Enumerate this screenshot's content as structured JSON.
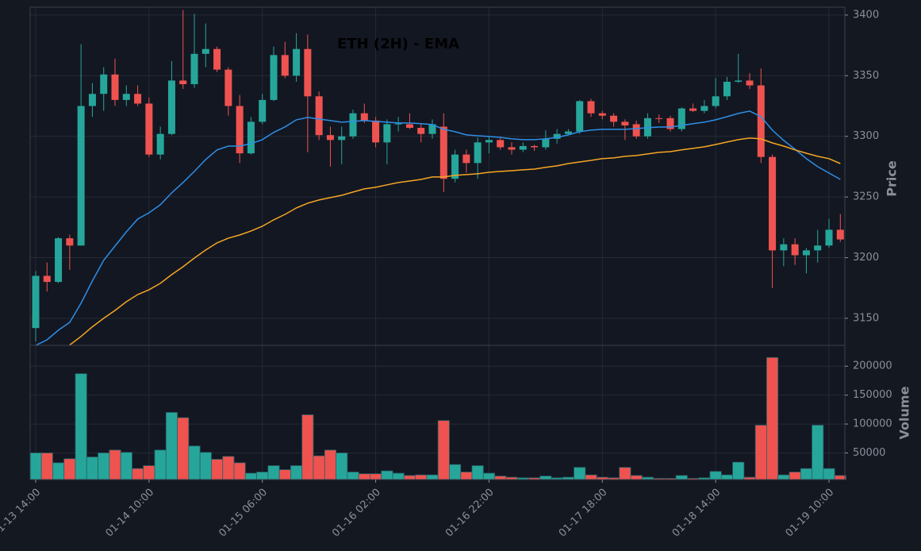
{
  "chart_data": {
    "type": "candlestick",
    "title": "ETH (2H) - EMA",
    "ylabel": "Price",
    "volume_label": "Volume",
    "categories": [
      "01-13 14:00",
      null,
      null,
      null,
      null,
      null,
      null,
      null,
      null,
      null,
      "01-14 10:00",
      null,
      null,
      null,
      null,
      null,
      null,
      null,
      null,
      null,
      "01-15 06:00",
      null,
      null,
      null,
      null,
      null,
      null,
      null,
      null,
      null,
      "01-16 02:00",
      null,
      null,
      null,
      null,
      null,
      null,
      null,
      null,
      null,
      "01-16 22:00",
      null,
      null,
      null,
      null,
      null,
      null,
      null,
      null,
      null,
      "01-17 18:00",
      null,
      null,
      null,
      null,
      null,
      null,
      null,
      null,
      null,
      "01-18 14:00",
      null,
      null,
      null,
      null,
      null,
      null,
      null,
      null,
      null,
      "01-19 10:00",
      null
    ],
    "open": [
      3142,
      3185,
      3180,
      3216,
      3210,
      3325,
      3335,
      3351,
      3330,
      3335,
      3327,
      3285,
      3302,
      3346,
      3343,
      3368,
      3372,
      3355,
      3325,
      3286,
      3312,
      3330,
      3367,
      3350,
      3372,
      3333,
      3301,
      3297,
      3300,
      3319,
      3313,
      3295,
      3310,
      3310,
      3307,
      3302,
      3308,
      3265,
      3285,
      3278,
      3295,
      3297,
      3291,
      3289,
      3292,
      3291,
      3298,
      3302,
      3304,
      3329,
      3319,
      3317,
      3312,
      3310,
      3300,
      3315,
      3315,
      3306,
      3323,
      3321,
      3325,
      3333,
      3345,
      3346,
      3342,
      3283,
      3206,
      3211,
      3202,
      3206,
      3210,
      3223
    ],
    "high": [
      3189,
      3196,
      3217,
      3219,
      3376,
      3344,
      3357,
      3364,
      3342,
      3342,
      3332,
      3308,
      3362,
      3404,
      3401,
      3393,
      3374,
      3357,
      3334,
      3316,
      3335,
      3374,
      3378,
      3385,
      3384,
      3337,
      3308,
      3308,
      3322,
      3327,
      3316,
      3314,
      3316,
      3319,
      3311,
      3314,
      3319,
      3289,
      3289,
      3299,
      3300,
      3299,
      3295,
      3295,
      3293,
      3305,
      3306,
      3306,
      3330,
      3331,
      3321,
      3319,
      3314,
      3313,
      3319,
      3318,
      3317,
      3324,
      3327,
      3330,
      3348,
      3349,
      3368,
      3352,
      3356,
      3285,
      3216,
      3216,
      3208,
      3223,
      3232,
      3236
    ],
    "low": [
      3131,
      3172,
      3179,
      3190,
      3210,
      3316,
      3321,
      3325,
      3325,
      3325,
      3283,
      3281,
      3301,
      3339,
      3340,
      3357,
      3353,
      3317,
      3278,
      3285,
      3310,
      3329,
      3348,
      3345,
      3287,
      3297,
      3275,
      3277,
      3298,
      3311,
      3291,
      3277,
      3304,
      3306,
      3295,
      3298,
      3254,
      3262,
      3270,
      3265,
      3286,
      3289,
      3285,
      3287,
      3288,
      3289,
      3294,
      3301,
      3302,
      3316,
      3314,
      3308,
      3297,
      3298,
      3298,
      3311,
      3304,
      3304,
      3320,
      3319,
      3323,
      3330,
      3344,
      3339,
      3278,
      3175,
      3193,
      3194,
      3187,
      3196,
      3208,
      3213
    ],
    "close": [
      3185,
      3180,
      3216,
      3210,
      3325,
      3335,
      3351,
      3330,
      3335,
      3327,
      3285,
      3302,
      3346,
      3343,
      3368,
      3372,
      3355,
      3325,
      3286,
      3312,
      3330,
      3367,
      3350,
      3372,
      3333,
      3301,
      3297,
      3300,
      3319,
      3313,
      3295,
      3310,
      3310.5,
      3307,
      3302,
      3310,
      3265,
      3285,
      3278,
      3295,
      3297,
      3291,
      3289,
      3292,
      3291,
      3298,
      3302,
      3304,
      3329,
      3319,
      3317,
      3312,
      3309,
      3300,
      3315,
      3314.5,
      3306,
      3323,
      3321,
      3325,
      3333,
      3345,
      3346,
      3342,
      3283,
      3206,
      3211,
      3202,
      3206,
      3210,
      3223,
      3215
    ],
    "volume": [
      50000,
      50000,
      33000,
      40000,
      187000,
      43000,
      50000,
      55000,
      51000,
      23000,
      28000,
      55000,
      120000,
      111000,
      62000,
      51000,
      39000,
      44000,
      33000,
      15000,
      17000,
      28000,
      21000,
      28000,
      116000,
      45000,
      55000,
      50000,
      17000,
      14000,
      14000,
      19000,
      15000,
      11000,
      12000,
      12000,
      106000,
      30000,
      17000,
      28000,
      15000,
      10000,
      8000,
      7000,
      7000,
      10000,
      7000,
      8000,
      25000,
      12000,
      8000,
      7000,
      25000,
      11000,
      8000,
      6000,
      6000,
      11000,
      6000,
      7000,
      18000,
      12000,
      34000,
      8000,
      98000,
      215000,
      12000,
      17000,
      23000,
      98000,
      23000,
      11000
    ],
    "up_color": "#26a69a",
    "down_color": "#ef5350",
    "series": [
      {
        "color": "#2d8fe6",
        "values": [
          3127.7,
          3132.3,
          3140.2,
          3146.7,
          3162.4,
          3180.8,
          3197.8,
          3209.6,
          3221.3,
          3231.8,
          3237.0,
          3243.6,
          3253.4,
          3261.9,
          3271.1,
          3280.9,
          3288.8,
          3292.0,
          3292.0,
          3294.0,
          3297.3,
          3303.2,
          3307.8,
          3313.6,
          3315.6,
          3314.3,
          3313.0,
          3311.7,
          3312.3,
          3313.0,
          3312.3,
          3311.7,
          3311.0,
          3311.0,
          3310.4,
          3309.7,
          3305.8,
          3303.8,
          3301.2,
          3300.5,
          3299.9,
          3299.2,
          3297.9,
          3297.3,
          3297.3,
          3297.9,
          3299.2,
          3301.2,
          3303.8,
          3305.1,
          3305.8,
          3305.8,
          3305.8,
          3306.4,
          3307.1,
          3307.7,
          3307.7,
          3309.0,
          3310.4,
          3311.7,
          3313.6,
          3316.2,
          3318.9,
          3320.8,
          3316.2,
          3305.1,
          3296.6,
          3289.4,
          3281.6,
          3275.0,
          3269.8,
          3264.5
        ]
      },
      {
        "color": "#f5a623",
        "values": [
          null,
          null,
          null,
          3128,
          3135,
          3143,
          3150,
          3156.5,
          3163.7,
          3169.6,
          3173.6,
          3178.8,
          3186.0,
          3192.5,
          3199.7,
          3206.3,
          3212.2,
          3216.1,
          3218.7,
          3222.0,
          3225.9,
          3231.2,
          3235.7,
          3241.0,
          3244.9,
          3247.5,
          3249.5,
          3251.4,
          3254.1,
          3256.7,
          3258.0,
          3260.0,
          3261.9,
          3263.2,
          3264.5,
          3266.5,
          3266.5,
          3267.8,
          3268.5,
          3269.1,
          3270.4,
          3271.1,
          3271.7,
          3272.4,
          3273.0,
          3274.4,
          3275.7,
          3277.6,
          3278.9,
          3280.2,
          3281.6,
          3282.2,
          3283.5,
          3284.2,
          3285.5,
          3286.8,
          3287.4,
          3288.8,
          3290.1,
          3291.4,
          3293.3,
          3295.3,
          3297.3,
          3298.6,
          3297.9,
          3294.6,
          3292.0,
          3288.8,
          3286.1,
          3283.5,
          3281.6,
          3277.6
        ]
      }
    ],
    "ylim": [
      3127.7,
      3406.5
    ],
    "yticks": [
      3150,
      3200,
      3250,
      3300,
      3350,
      3400
    ],
    "volume_ylim": [
      4000,
      236000
    ],
    "volume_yticks": [
      50000,
      100000,
      150000,
      200000
    ],
    "grid": true
  }
}
